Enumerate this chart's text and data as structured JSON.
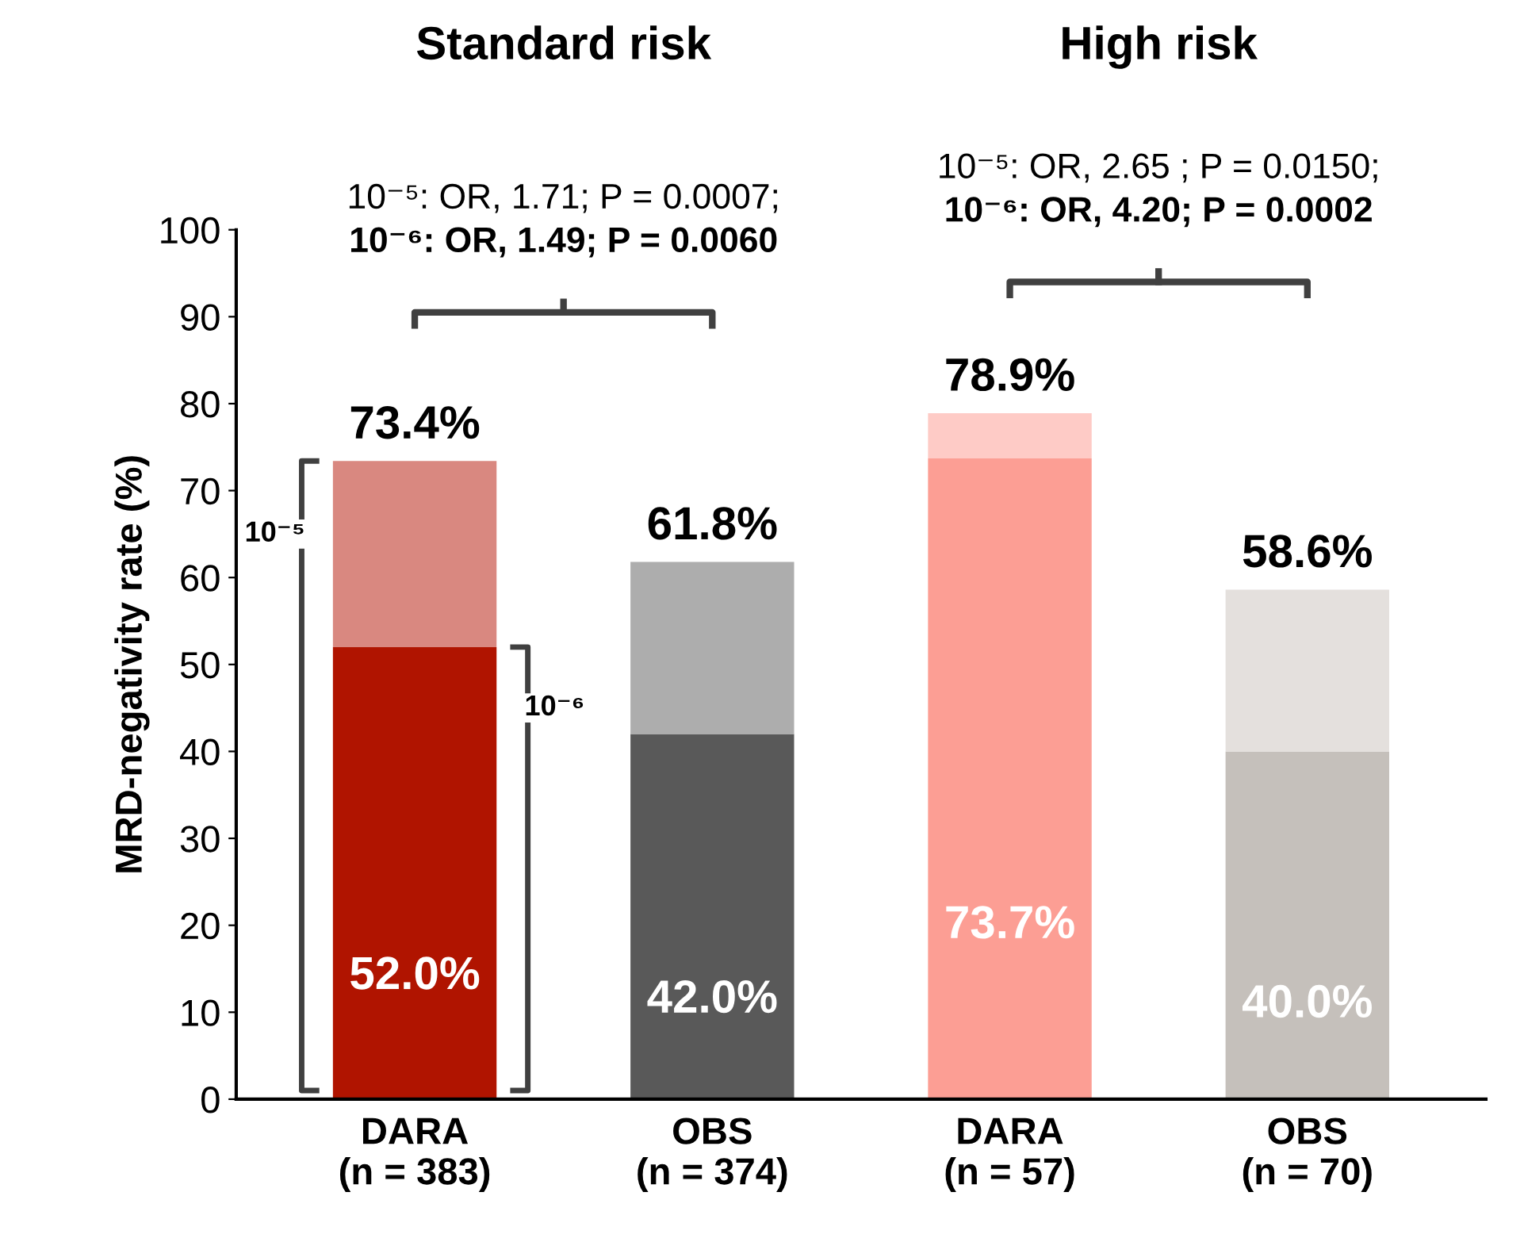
{
  "chart_data": {
    "type": "bar",
    "stacked": true,
    "ylabel": "MRD-negativity rate (%)",
    "categories": [
      "DARA\n(n = 383)",
      "OBS\n(n = 374)",
      "DARA\n(n = 57)",
      "OBS\n(n = 70)"
    ],
    "series": [
      {
        "colors": [
          "#b01400",
          "#595959",
          "#fc9e94",
          "#c5c0bb"
        ],
        "values": [
          52.0,
          42.0,
          73.7,
          40.0
        ],
        "value_labels": [
          "52.0%",
          "42.0%",
          "73.7%",
          "40.0%"
        ]
      },
      {
        "colors": [
          "#d98880",
          "#adadad",
          "#fecbc6",
          "#e4e0dd"
        ],
        "values": [
          21.4,
          19.8,
          5.2,
          18.6
        ]
      }
    ],
    "totals": [
      "73.4%",
      "61.8%",
      "78.9%",
      "58.6%"
    ],
    "ylim": [
      0,
      100
    ],
    "yticks": [
      0,
      10,
      20,
      30,
      40,
      50,
      60,
      70,
      80,
      90,
      100
    ],
    "grid": false,
    "legend": false,
    "annotations": [
      "Standard risk",
      "High risk",
      "10⁻⁵: OR, 1.71; P = 0.0007;",
      "10⁻⁶: OR, 1.49; P = 0.0060",
      "10⁻⁵: OR, 2.65 ; P = 0.0150;",
      "10⁻⁶: OR, 4.20; P = 0.0002",
      "10⁻⁵",
      "10⁻⁶"
    ]
  }
}
